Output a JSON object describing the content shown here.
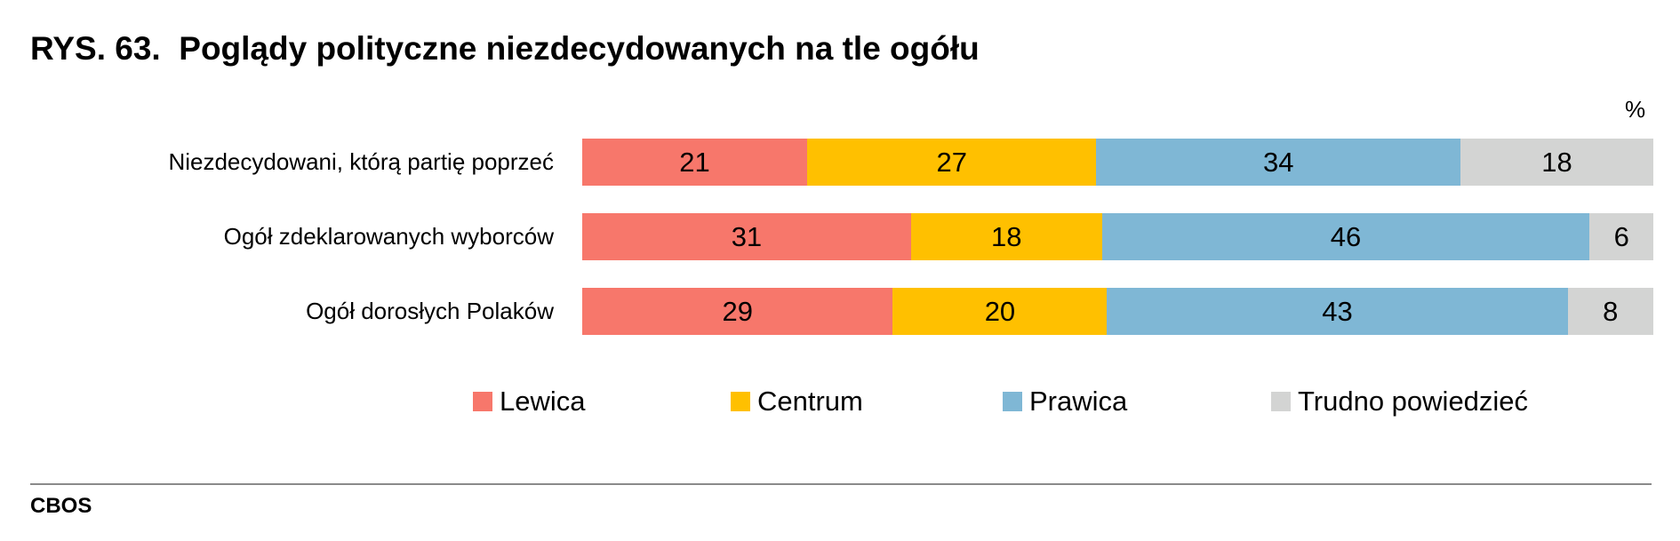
{
  "title": "RYS. 63.  Poglądy polityczne niezdecydowanych na tle ogółu",
  "unit": "%",
  "source": "CBOS",
  "chart_data": {
    "type": "bar",
    "orientation": "horizontal",
    "stacked": true,
    "categories": [
      "Niezdecydowani, którą partię poprzeć",
      "Ogół zdeklarowanych wyborców",
      "Ogół dorosłych Polaków"
    ],
    "series": [
      {
        "name": "Lewica",
        "color": "#F7776B",
        "values": [
          21,
          31,
          29
        ]
      },
      {
        "name": "Centrum",
        "color": "#FFC000",
        "values": [
          27,
          18,
          20
        ]
      },
      {
        "name": "Prawica",
        "color": "#7FB7D5",
        "values": [
          34,
          46,
          43
        ]
      },
      {
        "name": "Trudno powiedzieć",
        "color": "#D3D4D3",
        "values": [
          18,
          6,
          8
        ]
      }
    ],
    "xlim": [
      0,
      100
    ],
    "legend_position": "bottom",
    "grid": false
  }
}
